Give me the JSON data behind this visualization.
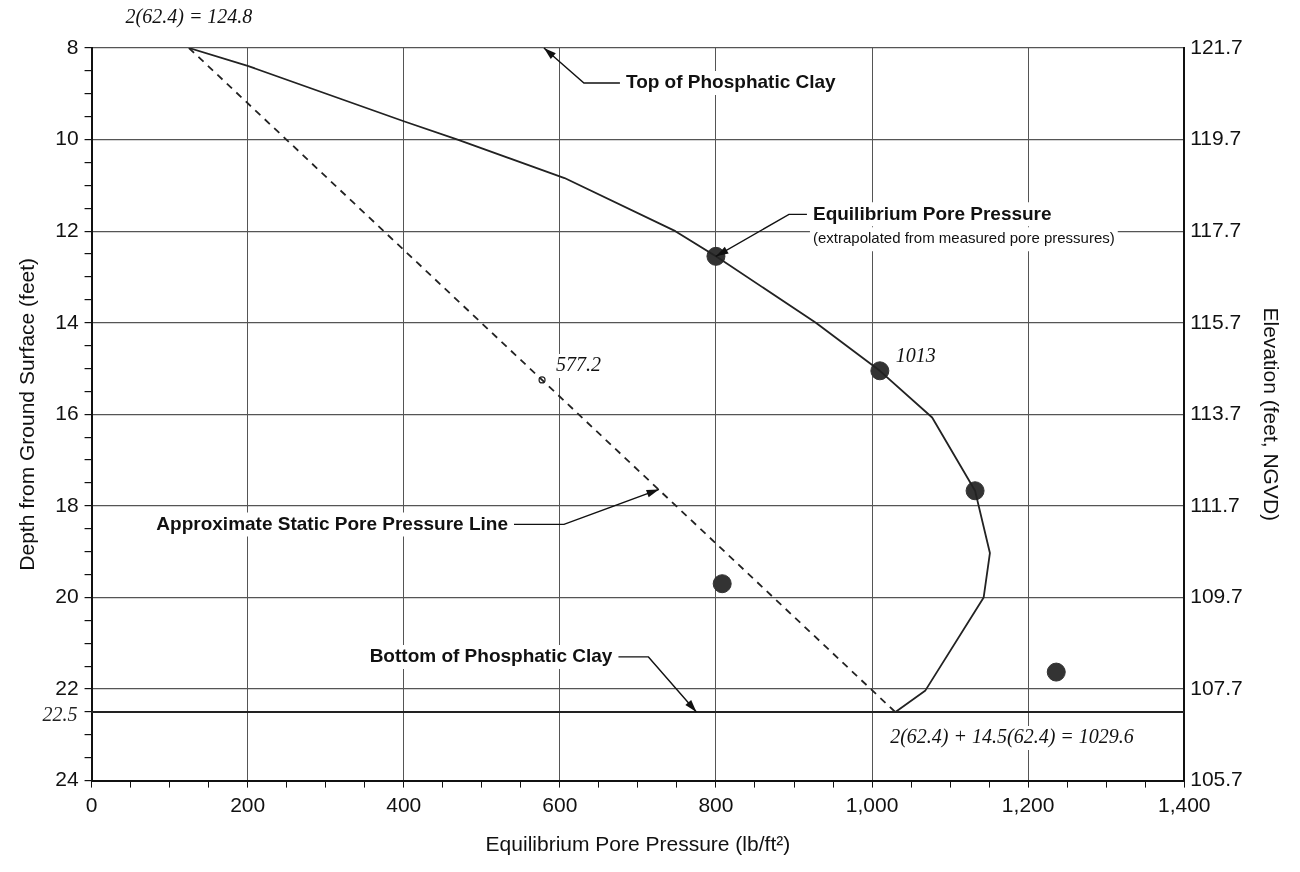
{
  "chart_data": {
    "type": "scatter",
    "xlabel": "Equilibrium Pore Pressure (lb/ft²)",
    "ylabel": "Depth from Ground Surface (feet)",
    "y2label": "Elevation (feet, NGVD)",
    "series": [
      {
        "type": "line",
        "color": "#222222",
        "line_style": "solid",
        "marker": "none",
        "x": [
          124.8,
          200,
          400,
          469,
          606,
          748,
          800,
          928,
          1010,
          1077,
          1132,
          1151,
          1143,
          1068,
          1030
        ],
        "values": [
          8,
          8.39,
          9.6,
          10,
          10.84,
          12,
          12.55,
          14,
          15.05,
          16.07,
          17.67,
          19.03,
          20,
          22.04,
          22.5
        ]
      },
      {
        "type": "line",
        "color": "#222222",
        "line_style": "dashed",
        "marker": "none",
        "x": [
          124.8,
          1029.6
        ],
        "values": [
          8,
          22.5
        ]
      },
      {
        "type": "scatter",
        "color": "#333333",
        "marker": "circle",
        "x": [
          800,
          1010,
          1132,
          808,
          1236
        ],
        "values": [
          12.55,
          15.05,
          17.67,
          19.7,
          21.63
        ]
      }
    ],
    "xlim": [
      0,
      1400
    ],
    "xticks": [
      0,
      {
        "value": 50,
        "label": null
      },
      {
        "value": 100,
        "label": null
      },
      {
        "value": 150,
        "label": null
      },
      200,
      {
        "value": 250,
        "label": null
      },
      {
        "value": 300,
        "label": null
      },
      {
        "value": 350,
        "label": null
      },
      400,
      {
        "value": 450,
        "label": null
      },
      {
        "value": 500,
        "label": null
      },
      {
        "value": 550,
        "label": null
      },
      600,
      {
        "value": 650,
        "label": null
      },
      {
        "value": 700,
        "label": null
      },
      {
        "value": 750,
        "label": null
      },
      800,
      {
        "value": 850,
        "label": null
      },
      {
        "value": 900,
        "label": null
      },
      {
        "value": 950,
        "label": null
      },
      {
        "value": 1000,
        "label": "1,000"
      },
      {
        "value": 1050,
        "label": null
      },
      {
        "value": 1100,
        "label": null
      },
      {
        "value": 1150,
        "label": null
      },
      {
        "value": 1200,
        "label": "1,200"
      },
      {
        "value": 1250,
        "label": null
      },
      {
        "value": 1300,
        "label": null
      },
      {
        "value": 1350,
        "label": null
      },
      {
        "value": 1400,
        "label": "1,400"
      }
    ],
    "ylim": [
      24,
      8
    ],
    "yticks": [
      8,
      {
        "value": 8.5,
        "label": null
      },
      {
        "value": 9,
        "label": null
      },
      {
        "value": 9.5,
        "label": null
      },
      10,
      {
        "value": 10.5,
        "label": null
      },
      {
        "value": 11,
        "label": null
      },
      {
        "value": 11.5,
        "label": null
      },
      12,
      {
        "value": 12.5,
        "label": null
      },
      {
        "value": 13,
        "label": null
      },
      {
        "value": 13.5,
        "label": null
      },
      14,
      {
        "value": 14.5,
        "label": null
      },
      {
        "value": 15,
        "label": null
      },
      {
        "value": 15.5,
        "label": null
      },
      16,
      {
        "value": 16.5,
        "label": null
      },
      {
        "value": 17,
        "label": null
      },
      {
        "value": 17.5,
        "label": null
      },
      18,
      {
        "value": 18.5,
        "label": null
      },
      {
        "value": 19,
        "label": null
      },
      {
        "value": 19.5,
        "label": null
      },
      20,
      {
        "value": 20.5,
        "label": null
      },
      {
        "value": 21,
        "label": null
      },
      {
        "value": 21.5,
        "label": null
      },
      22,
      {
        "value": 22.5,
        "label": null
      },
      {
        "value": 23,
        "label": null
      },
      {
        "value": 23.5,
        "label": null
      },
      24
    ],
    "y2lim": [
      105.7,
      121.7
    ],
    "y2ticks": [
      105.7,
      107.7,
      109.7,
      111.7,
      113.7,
      115.7,
      117.7,
      119.7,
      121.7
    ],
    "grid": true,
    "legend": false,
    "ref_lines": [
      {
        "axis": "y",
        "value": 22.5,
        "label": "22.5",
        "color": "#222222",
        "line_style": "solid"
      }
    ],
    "annotations": [
      {
        "text": "2(62.4) = 124.8",
        "x": 124.8,
        "y": 8
      },
      "Top of Phosphatic Clay",
      {
        "text": "Equilibrium Pore Pressure",
        "x": 800,
        "y": 12.55
      },
      "(extrapolated from measured pore pressures)",
      {
        "text": "577.2",
        "x": 577.2,
        "y": 15.25
      },
      {
        "text": "1013",
        "x": 1010,
        "y": 15.05
      },
      {
        "text": "Approximate Static Pore Pressure Line",
        "x": 727,
        "y": 17.64
      },
      {
        "text": "Bottom of Phosphatic Clay",
        "x": 775,
        "y": 22.5
      },
      {
        "text": "2(62.4) + 14.5(62.4) = 1029.6",
        "x": 1029.6,
        "y": 22.5
      }
    ]
  }
}
